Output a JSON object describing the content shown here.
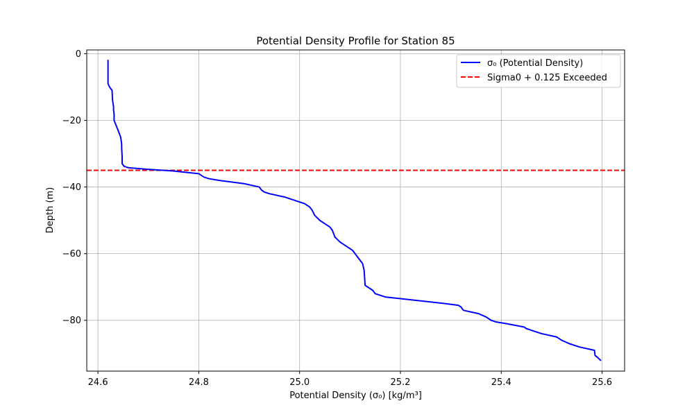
{
  "chart_data": {
    "type": "line",
    "title": "Potential Density Profile for Station 85",
    "xlabel": "Potential Density (σ₀) [kg/m³]",
    "ylabel": "Depth (m)",
    "xlim": [
      24.6,
      25.6
    ],
    "ylim": [
      -94,
      0
    ],
    "xticks": [
      24.6,
      24.8,
      25.0,
      25.2,
      25.4,
      25.6
    ],
    "xtick_labels": [
      "24.6",
      "24.8",
      "25.0",
      "25.2",
      "25.4",
      "25.6"
    ],
    "yticks": [
      0,
      -20,
      -40,
      -60,
      -80
    ],
    "ytick_labels": [
      "0",
      "−20",
      "−40",
      "−60",
      "−80"
    ],
    "grid": true,
    "legend_position": "top-right",
    "series": [
      {
        "name": "σ₀ (Potential Density)",
        "color": "#0000ff",
        "style": "solid",
        "x": [
          24.62,
          24.62,
          24.62,
          24.623,
          24.628,
          24.629,
          24.631,
          24.631,
          24.632,
          24.632,
          24.64,
          24.645,
          24.646,
          24.647,
          24.647,
          24.648,
          24.648,
          24.648,
          24.652,
          24.66,
          24.7,
          24.75,
          24.78,
          24.8,
          24.81,
          24.82,
          24.84,
          24.89,
          24.92,
          24.925,
          24.93,
          24.94,
          24.97,
          25.0,
          25.01,
          25.02,
          25.025,
          25.03,
          25.04,
          25.05,
          25.06,
          25.065,
          25.07,
          25.08,
          25.095,
          25.105,
          25.11,
          25.12,
          25.125,
          25.128,
          25.13,
          25.145,
          25.15,
          25.17,
          25.2,
          25.29,
          25.315,
          25.32,
          25.325,
          25.355,
          25.37,
          25.38,
          25.39,
          25.41,
          25.445,
          25.45,
          25.46,
          25.48,
          25.51,
          25.515,
          25.52,
          25.535,
          25.555,
          25.585,
          25.586,
          25.59,
          25.597
        ],
        "y": [
          -2,
          -8,
          -9,
          -10,
          -11,
          -14,
          -16,
          -17,
          -18,
          -20,
          -23,
          -25,
          -26,
          -27,
          -28,
          -31,
          -32,
          -33,
          -33.8,
          -34.2,
          -34.7,
          -35.2,
          -35.7,
          -36,
          -37,
          -37.5,
          -38,
          -39,
          -40,
          -41,
          -41.5,
          -42,
          -43,
          -44.5,
          -45,
          -46,
          -47,
          -48.5,
          -50,
          -51,
          -52,
          -53,
          -55,
          -56.5,
          -58,
          -59,
          -60,
          -62,
          -63,
          -65,
          -69.5,
          -71,
          -72,
          -73,
          -73.5,
          -75,
          -75.5,
          -76,
          -77,
          -78,
          -79,
          -80,
          -80.5,
          -81,
          -82,
          -82.5,
          -83,
          -84,
          -85,
          -85.5,
          -86,
          -87,
          -88,
          -89,
          -90.5,
          -91,
          -92
        ]
      }
    ],
    "threshold_line": {
      "name": "Sigma0 + 0.125 Exceeded",
      "y": -35,
      "color": "#ff0000",
      "style": "dashed"
    }
  }
}
